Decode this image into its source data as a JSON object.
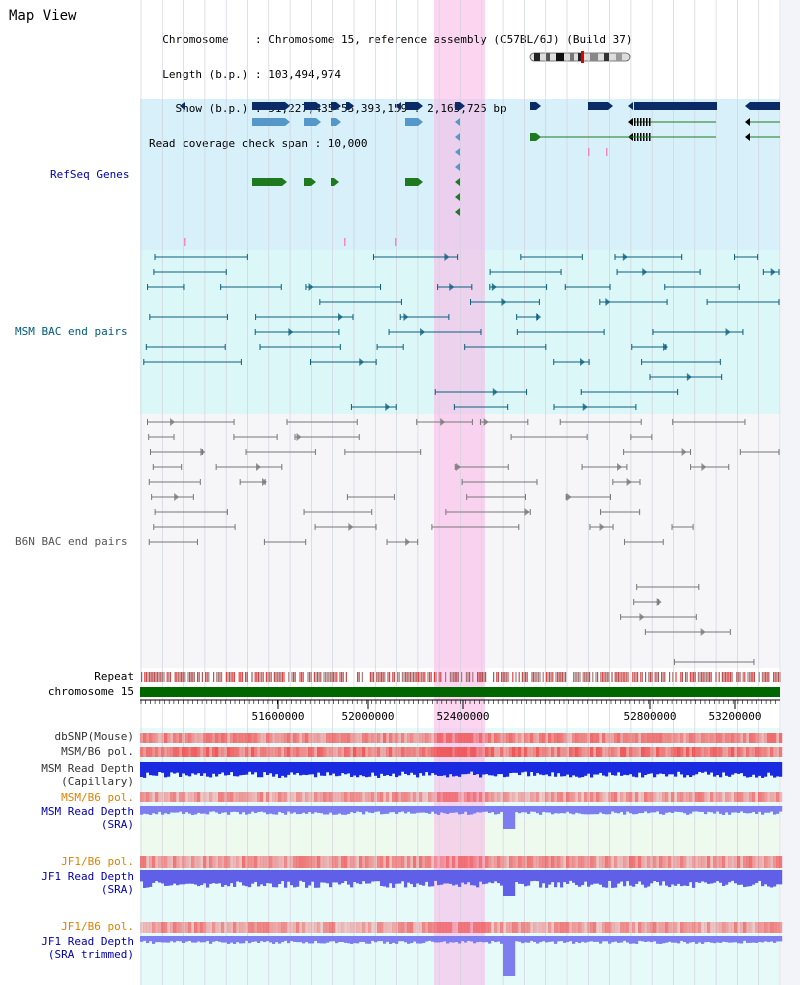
{
  "header": {
    "title": "Map View",
    "info_lines": [
      "  Chromosome    : Chromosome 15, reference assembly (C57BL/6J) (Build 37)",
      "  Length (b.p.) : 103,494,974",
      "    Show (b.p.) : 51,227,435-53,393,159 : 2,165,725 bp",
      "Read coverage check span : 10,000"
    ]
  },
  "colors": {
    "refseq_bg": "#d7f0fa",
    "msm_bg": "#dcf7f7",
    "b6n_bg": "#f6f6f8",
    "highlight": "#f9d7ef",
    "chromosome_green": "#006600",
    "refseq_dark": "#0b2b66",
    "refseq_mid": "#5597c8",
    "refseq_green": "#1f7a1f",
    "msm_line": "#0a5f7f",
    "b6n_line": "#777777",
    "snp_red": "#f05050",
    "depth_blue": "#1a2ae0",
    "depth_light": "#7d7df0",
    "label_blue": "#0000aa",
    "label_orange": "#e08000"
  },
  "tracks": {
    "refseq": "RefSeq Genes",
    "msm_bac": "MSM BAC end pairs",
    "b6n_bac": "B6N BAC end pairs",
    "repeat": "Repeat",
    "chromosome": "chromosome 15",
    "dbsnp": "dbSNP(Mouse)",
    "msm_b6_pol_1": "MSM/B6 pol.",
    "msm_depth_cap_1": "MSM Read Depth",
    "msm_depth_cap_2": "(Capillary)",
    "msm_b6_pol_2": "MSM/B6 pol.",
    "msm_depth_sra_1": "MSM Read Depth",
    "msm_depth_sra_2": "(SRA)",
    "jf1_b6_pol_1": "JF1/B6 pol.",
    "jf1_depth_sra_1": "JF1 Read Depth",
    "jf1_depth_sra_2": "(SRA)",
    "jf1_b6_pol_2": "JF1/B6 pol.",
    "jf1_depth_trim_1": "JF1 Read Depth",
    "jf1_depth_trim_2": "(SRA trimmed)"
  },
  "axis": {
    "ticks": [
      "51600000",
      "52000000",
      "52400000",
      "52800000",
      "53200000"
    ]
  }
}
